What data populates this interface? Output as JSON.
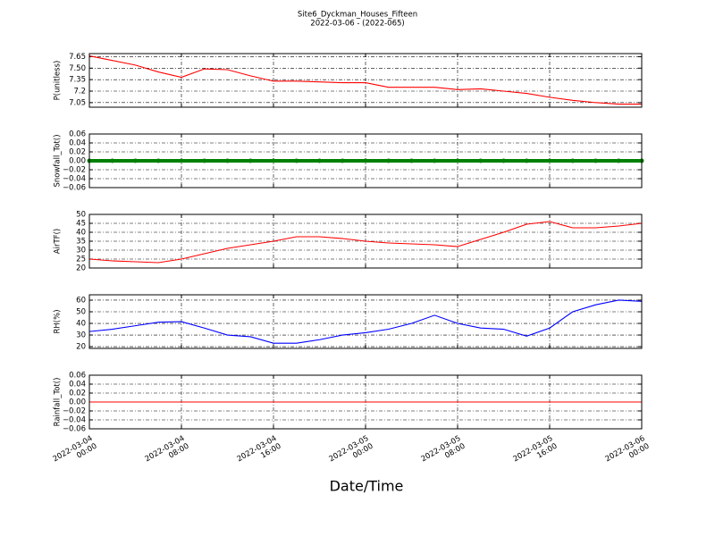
{
  "title": "Site6_Dyckman_Houses_Fifteen",
  "subtitle": "2022-03-06 - (2022-065)",
  "x_label": "Date/Time",
  "xlim": [
    "2022-03-04 00:00",
    "2022-03-06 00:00"
  ],
  "xticks": [
    {
      "value": "2022-03-04 00:00",
      "label": "2022-03-04\n00:00"
    },
    {
      "value": "2022-03-04 08:00",
      "label": "2022-03-04\n08:00"
    },
    {
      "value": "2022-03-04 16:00",
      "label": "2022-03-04\n16:00"
    },
    {
      "value": "2022-03-05 00:00",
      "label": "2022-03-05\n00:00"
    },
    {
      "value": "2022-03-05 08:00",
      "label": "2022-03-05\n08:00"
    },
    {
      "value": "2022-03-05 16:00",
      "label": "2022-03-05\n16:00"
    },
    {
      "value": "2022-03-06 00:00",
      "label": "2022-03-06\n00:00"
    }
  ],
  "x": [
    "2022-03-04 00:00",
    "2022-03-04 02:00",
    "2022-03-04 04:00",
    "2022-03-04 06:00",
    "2022-03-04 08:00",
    "2022-03-04 10:00",
    "2022-03-04 12:00",
    "2022-03-04 14:00",
    "2022-03-04 16:00",
    "2022-03-04 18:00",
    "2022-03-04 20:00",
    "2022-03-04 22:00",
    "2022-03-05 00:00",
    "2022-03-05 02:00",
    "2022-03-05 04:00",
    "2022-03-05 06:00",
    "2022-03-05 08:00",
    "2022-03-05 10:00",
    "2022-03-05 12:00",
    "2022-03-05 14:00",
    "2022-03-05 16:00",
    "2022-03-05 18:00",
    "2022-03-05 20:00",
    "2022-03-05 22:00",
    "2022-03-06 00:00"
  ],
  "chart_data": [
    {
      "type": "line",
      "y_label": "P(unitless)",
      "ylim": [
        6.99,
        7.69
      ],
      "yticks": [
        7.05,
        7.2,
        {
          "value": 7.35,
          "label": "7.35"
        },
        {
          "value": 7.5,
          "label": "7.50"
        },
        7.65
      ],
      "grid": true,
      "color": "#ff0000",
      "marker": false,
      "values": [
        7.66,
        7.6,
        7.54,
        7.45,
        7.38,
        7.49,
        7.48,
        7.4,
        7.33,
        7.33,
        7.32,
        7.31,
        7.31,
        7.25,
        7.25,
        7.25,
        7.22,
        7.23,
        7.2,
        7.17,
        7.12,
        7.08,
        7.05,
        7.03,
        7.03
      ]
    },
    {
      "type": "line",
      "y_label": "Snowfall_Tot()",
      "ylim": [
        -0.06,
        0.06
      ],
      "yticks": [
        {
          "value": -0.06,
          "label": "−0.06"
        },
        {
          "value": -0.04,
          "label": "−0.04"
        },
        {
          "value": -0.02,
          "label": "−0.02"
        },
        {
          "value": 0,
          "label": "0.00"
        },
        0.02,
        0.04,
        0.06
      ],
      "grid": true,
      "color": "#008000",
      "marker": true,
      "values": [
        0,
        0,
        0,
        0,
        0,
        0,
        0,
        0,
        0,
        0,
        0,
        0,
        0,
        0,
        0,
        0,
        0,
        0,
        0,
        0,
        0,
        0,
        0,
        0,
        0
      ]
    },
    {
      "type": "line",
      "y_label": "AirTF()",
      "ylim": [
        20,
        50
      ],
      "yticks": [
        20,
        25,
        30,
        35,
        40,
        45,
        50
      ],
      "grid": true,
      "color": "#ff0000",
      "marker": false,
      "values": [
        25,
        24,
        23.5,
        23,
        25,
        28,
        31,
        33,
        35,
        37.5,
        37.5,
        36.5,
        35,
        34,
        33.5,
        33,
        32,
        36,
        40,
        44.5,
        46,
        42.5,
        42.5,
        43.5,
        45
      ]
    },
    {
      "type": "line",
      "y_label": "RH(%)",
      "ylim": [
        18.5,
        64.6
      ],
      "yticks": [
        20,
        30,
        40,
        50,
        60
      ],
      "grid": true,
      "color": "#0000ff",
      "marker": false,
      "values": [
        33,
        35,
        38,
        41,
        41.5,
        36,
        30,
        28.5,
        23,
        23,
        26,
        30,
        32,
        35,
        40,
        47,
        40,
        36,
        35,
        29,
        36,
        50,
        56,
        60,
        59
      ]
    },
    {
      "type": "line",
      "y_label": "Rainfall_Tot()",
      "ylim": [
        -0.06,
        0.06
      ],
      "yticks": [
        {
          "value": -0.06,
          "label": "−0.06"
        },
        {
          "value": -0.04,
          "label": "−0.04"
        },
        {
          "value": -0.02,
          "label": "−0.02"
        },
        {
          "value": 0,
          "label": "0.00"
        },
        0.02,
        0.04,
        0.06
      ],
      "grid": true,
      "color": "#ff0000",
      "marker": false,
      "values": [
        0,
        0,
        0,
        0,
        0,
        0,
        0,
        0,
        0,
        0,
        0,
        0,
        0,
        0,
        0,
        0,
        0,
        0,
        0,
        0,
        0,
        0,
        0,
        0,
        0
      ]
    }
  ]
}
